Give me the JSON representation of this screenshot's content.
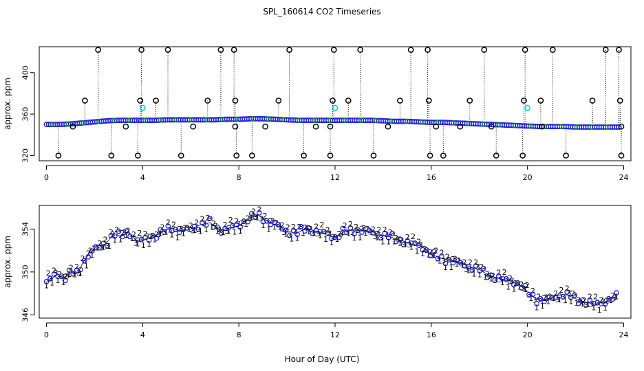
{
  "figure": {
    "title": "SPL_160614  CO2 Timeseries",
    "xlabel": "Hour of Day (UTC)"
  },
  "chart_data": [
    {
      "type": "scatter",
      "panel": "top",
      "ylabel": "approx. ppm",
      "xlim": [
        -0.3,
        24.3
      ],
      "ylim": [
        315,
        425
      ],
      "xticks": [
        0,
        4,
        8,
        12,
        16,
        20,
        24
      ],
      "yticks": [
        320,
        360,
        400
      ],
      "baseline_points": [
        [
          0,
          350
        ],
        [
          0.5,
          350
        ],
        [
          1,
          350.5
        ],
        [
          1.5,
          351.5
        ],
        [
          2,
          352.5
        ],
        [
          2.5,
          353.5
        ],
        [
          3,
          354
        ],
        [
          3.5,
          354
        ],
        [
          4,
          354
        ],
        [
          4.5,
          354
        ],
        [
          5,
          354.5
        ],
        [
          5.5,
          354.5
        ],
        [
          6,
          354.5
        ],
        [
          6.5,
          354.5
        ],
        [
          7,
          354.5
        ],
        [
          7.5,
          355
        ],
        [
          8,
          355
        ],
        [
          8.5,
          355.5
        ],
        [
          9,
          355.5
        ],
        [
          9.5,
          355
        ],
        [
          10,
          354.5
        ],
        [
          10.5,
          354
        ],
        [
          11,
          354
        ],
        [
          11.5,
          354
        ],
        [
          12,
          354
        ],
        [
          12.5,
          354
        ],
        [
          13,
          354
        ],
        [
          13.5,
          354
        ],
        [
          14,
          353.5
        ],
        [
          14.5,
          353
        ],
        [
          15,
          353
        ],
        [
          15.5,
          352.5
        ],
        [
          16,
          352
        ],
        [
          16.5,
          352
        ],
        [
          17,
          351.5
        ],
        [
          17.5,
          351
        ],
        [
          18,
          350.5
        ],
        [
          18.5,
          350
        ],
        [
          19,
          349.5
        ],
        [
          19.5,
          349
        ],
        [
          20,
          348.5
        ],
        [
          20.5,
          348
        ],
        [
          21,
          348
        ],
        [
          21.5,
          348
        ],
        [
          22,
          347.5
        ],
        [
          22.5,
          347.5
        ],
        [
          23,
          347.5
        ],
        [
          23.5,
          347.5
        ],
        [
          23.8,
          347.5
        ]
      ],
      "high_spikes": [
        [
          2.15,
          422
        ],
        [
          3.95,
          422
        ],
        [
          5.05,
          422
        ],
        [
          7.25,
          422
        ],
        [
          7.8,
          422
        ],
        [
          10.1,
          422
        ],
        [
          11.95,
          422
        ],
        [
          13.05,
          422
        ],
        [
          15.15,
          422
        ],
        [
          15.85,
          422
        ],
        [
          18.2,
          422
        ],
        [
          19.9,
          422
        ],
        [
          21.05,
          422
        ],
        [
          23.25,
          422
        ],
        [
          23.8,
          422
        ]
      ],
      "mid_spikes": [
        [
          1.6,
          373
        ],
        [
          3.9,
          373
        ],
        [
          4.55,
          373
        ],
        [
          6.7,
          373
        ],
        [
          7.85,
          373
        ],
        [
          9.65,
          373
        ],
        [
          11.9,
          373
        ],
        [
          12.55,
          373
        ],
        [
          14.7,
          373
        ],
        [
          15.9,
          373
        ],
        [
          17.6,
          373
        ],
        [
          19.85,
          373
        ],
        [
          20.55,
          373
        ],
        [
          22.7,
          373
        ],
        [
          23.85,
          373
        ]
      ],
      "low_spikes": [
        [
          0.5,
          320
        ],
        [
          2.7,
          320
        ],
        [
          3.8,
          320
        ],
        [
          5.6,
          320
        ],
        [
          7.9,
          320
        ],
        [
          8.55,
          320
        ],
        [
          10.7,
          320
        ],
        [
          11.8,
          320
        ],
        [
          13.6,
          320
        ],
        [
          15.95,
          320
        ],
        [
          16.5,
          320
        ],
        [
          18.7,
          320
        ],
        [
          19.8,
          320
        ],
        [
          21.6,
          320
        ],
        [
          23.9,
          320
        ]
      ],
      "dip_points": [
        [
          1.1,
          348
        ],
        [
          3.3,
          348
        ],
        [
          6.1,
          348
        ],
        [
          7.85,
          348
        ],
        [
          9.1,
          348
        ],
        [
          11.2,
          348
        ],
        [
          11.8,
          348
        ],
        [
          14.2,
          348
        ],
        [
          16.2,
          348
        ],
        [
          17.2,
          348
        ],
        [
          18.5,
          348
        ],
        [
          20.6,
          348
        ],
        [
          23.9,
          348
        ]
      ],
      "cyan_points": [
        [
          4.0,
          366
        ],
        [
          12.0,
          366
        ],
        [
          20.0,
          366
        ]
      ]
    },
    {
      "type": "scatter",
      "panel": "bottom",
      "ylabel": "approx. ppm",
      "xlim": [
        -0.3,
        24.3
      ],
      "ylim": [
        345.7,
        356.2
      ],
      "xticks": [
        0,
        4,
        8,
        12,
        16,
        20,
        24
      ],
      "yticks": [
        346,
        350,
        354
      ],
      "point_glyphs": [
        "1",
        "2",
        "3"
      ],
      "series": [
        {
          "x": [
            0,
            0.5,
            0.7,
            1.0,
            1.3,
            1.5,
            1.8,
            2.2,
            2.5,
            2.8,
            3.1,
            3.4,
            3.7,
            4.0,
            4.4,
            4.8,
            5.2,
            5.6,
            6.0,
            6.4,
            6.8,
            7.2,
            7.6,
            8.0,
            8.4,
            8.8,
            9.2,
            9.6,
            10.0,
            10.4,
            10.8,
            11.2,
            11.6,
            12.0,
            12.4,
            12.8,
            13.2,
            13.6,
            14.0,
            14.4,
            14.8,
            15.2,
            15.6,
            16.0,
            16.4,
            16.8,
            17.2,
            17.6,
            18.0,
            18.4,
            18.8,
            19.2,
            19.6,
            20.0,
            20.4,
            20.8,
            21.2,
            21.6,
            22.0,
            22.4,
            22.8,
            23.2,
            23.7
          ],
          "y": [
            349.1,
            349.8,
            349.4,
            350.0,
            349.8,
            350.8,
            351.8,
            352.3,
            352.7,
            353.6,
            353.3,
            353.8,
            353.0,
            352.9,
            353.3,
            353.7,
            354.1,
            353.8,
            354.0,
            354.4,
            354.6,
            353.9,
            354.1,
            354.3,
            355.0,
            355.3,
            354.7,
            354.3,
            353.8,
            353.6,
            354.1,
            353.8,
            353.6,
            353.2,
            353.8,
            353.9,
            353.8,
            353.7,
            353.4,
            353.2,
            352.9,
            352.6,
            352.4,
            351.6,
            351.3,
            351.0,
            350.8,
            350.5,
            350.2,
            349.7,
            349.4,
            349.2,
            348.9,
            348.2,
            347.4,
            347.3,
            347.8,
            347.9,
            347.5,
            347.2,
            347.0,
            347.2,
            347.7
          ]
        }
      ]
    }
  ]
}
